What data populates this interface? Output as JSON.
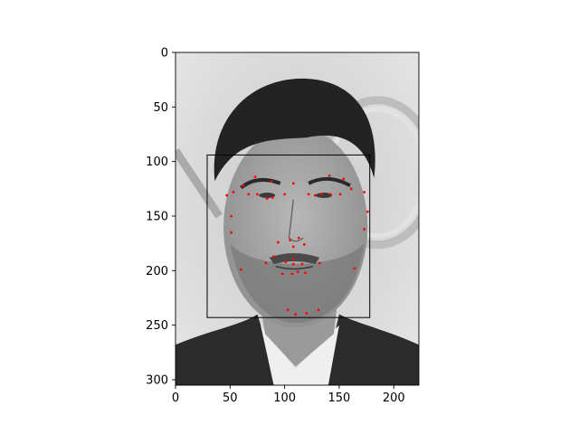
{
  "chart_data": {
    "type": "scatter",
    "title": "",
    "xlabel": "",
    "ylabel": "",
    "xlim": [
      0,
      223
    ],
    "ylim": [
      305,
      0
    ],
    "y_inverted": true,
    "grid": false,
    "image": {
      "description": "grayscale photograph of a man's face (background image)",
      "extent_x": [
        0,
        223
      ],
      "extent_y": [
        0,
        305
      ]
    },
    "x_ticks": [
      0,
      50,
      100,
      150,
      200
    ],
    "y_ticks": [
      0,
      50,
      100,
      150,
      200,
      250,
      300
    ],
    "bounding_box": {
      "x0": 29,
      "y0": 94,
      "x1": 178,
      "y1": 243,
      "color": "#000000"
    },
    "series": [
      {
        "marker_color": "#ff0000",
        "points": [
          [
            47,
            131
          ],
          [
            53,
            128
          ],
          [
            62,
            122
          ],
          [
            73,
            114
          ],
          [
            88,
            118
          ],
          [
            108,
            120
          ],
          [
            141,
            113
          ],
          [
            154,
            116
          ],
          [
            161,
            125
          ],
          [
            173,
            128
          ],
          [
            67,
            130
          ],
          [
            75,
            130
          ],
          [
            84,
            134
          ],
          [
            89,
            133
          ],
          [
            100,
            130
          ],
          [
            122,
            130
          ],
          [
            128,
            131
          ],
          [
            134,
            130
          ],
          [
            142,
            130
          ],
          [
            151,
            130
          ],
          [
            51,
            150
          ],
          [
            51,
            165
          ],
          [
            60,
            199
          ],
          [
            176,
            146
          ],
          [
            173,
            162
          ],
          [
            164,
            198
          ],
          [
            105,
            172
          ],
          [
            113,
            170
          ],
          [
            118,
            176
          ],
          [
            94,
            174
          ],
          [
            108,
            178
          ],
          [
            83,
            193
          ],
          [
            90,
            187
          ],
          [
            101,
            192
          ],
          [
            108,
            194
          ],
          [
            116,
            194
          ],
          [
            132,
            193
          ],
          [
            98,
            203
          ],
          [
            107,
            203
          ],
          [
            112,
            201
          ],
          [
            119,
            202
          ],
          [
            108,
            189
          ],
          [
            103,
            236
          ],
          [
            110,
            240
          ],
          [
            120,
            239
          ],
          [
            131,
            236
          ]
        ]
      }
    ]
  }
}
